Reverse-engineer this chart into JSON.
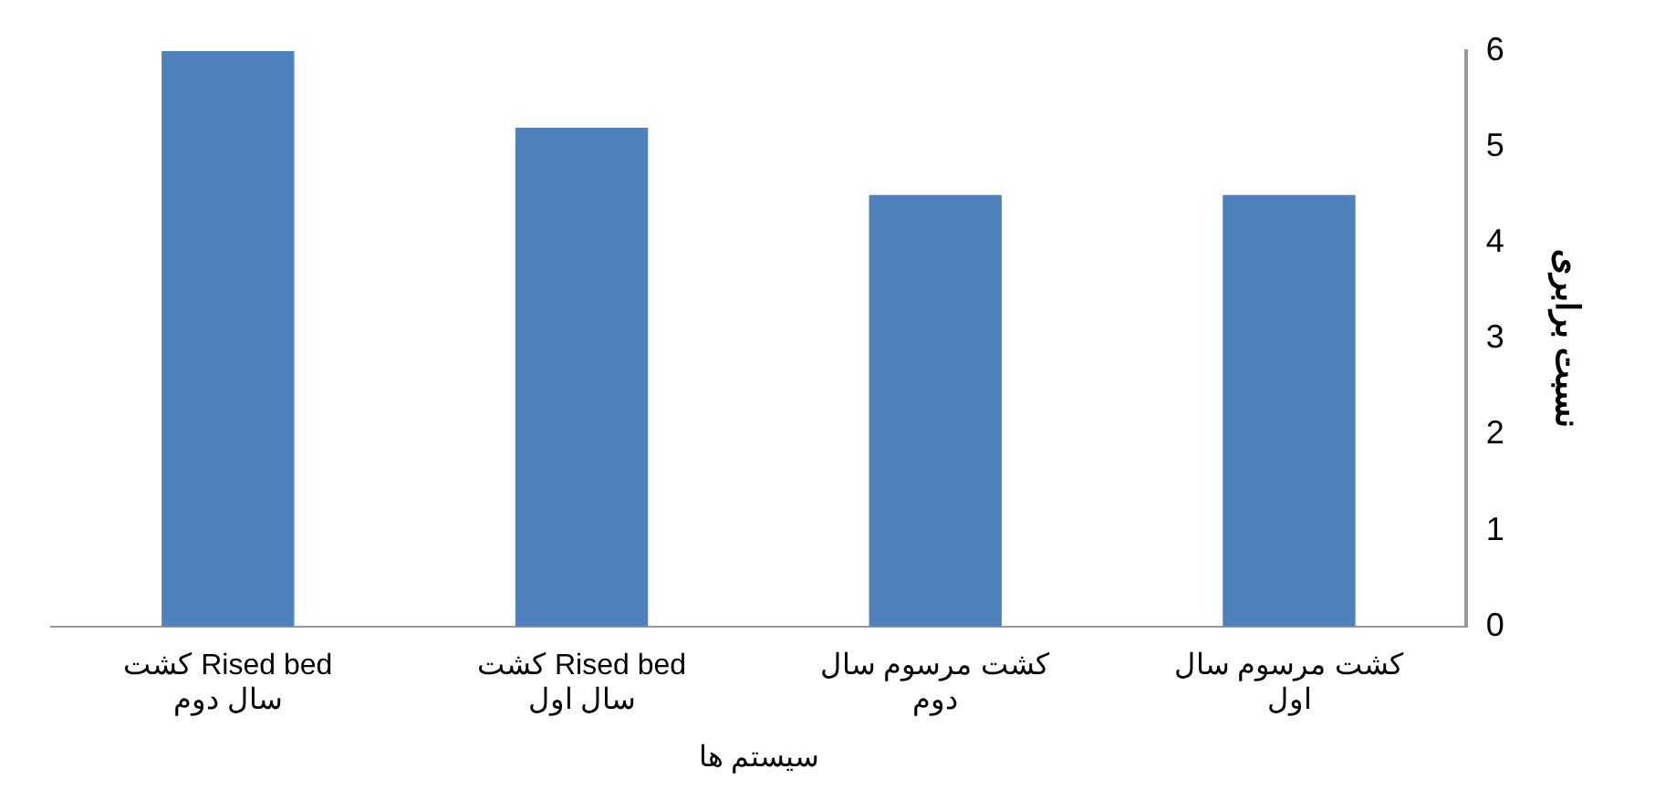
{
  "chart_data": {
    "type": "bar",
    "xlabel": "سیستم ها",
    "ylabel": "نسبت برابری",
    "categories": [
      "کشت Rised bed\nسال دوم",
      "کشت Rised bed\nسال اول",
      "کشت مرسوم سال\nدوم",
      "کشت مرسوم سال\nاول"
    ],
    "values": [
      6.0,
      5.2,
      4.5,
      4.5
    ],
    "color": "#4f81bd",
    "ylim": [
      0,
      6
    ],
    "yticks": [
      0,
      1,
      2,
      3,
      4,
      5,
      6
    ],
    "grid": false,
    "legend": false
  }
}
